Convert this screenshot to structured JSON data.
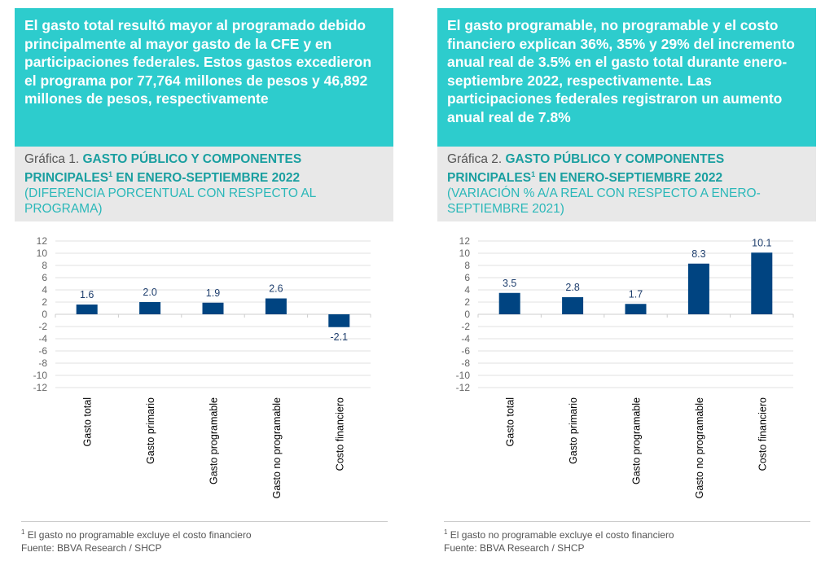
{
  "panels": [
    {
      "headline": "El gasto total resultó mayor al programado debido principalmente al mayor gasto de la CFE y en participaciones federales. Estos gastos excedieron el programa por 77,764 millones de pesos y 46,892 millones de pesos, respectivamente",
      "chart_prefix": "Gráfica 1. ",
      "chart_title_a": "GASTO PÚBLICO Y COMPONENTES PRINCIPALES",
      "sup": "1",
      "chart_title_b": " EN ENERO-SEPTIEMBRE 2022",
      "chart_subtitle": "(DIFERENCIA PORCENTUAL CON RESPECTO AL PROGRAMA)",
      "footnote_sup": "1",
      "footnote": " El gasto no programable excluye el costo financiero",
      "source": "Fuente: BBVA Research / SHCP"
    },
    {
      "headline": "El gasto programable, no programable y el costo financiero explican 36%, 35% y 29% del incremento anual real de 3.5% en el gasto total durante enero-septiembre 2022, respectivamente. Las participaciones federales registraron un aumento anual real de 7.8%",
      "chart_prefix": "Gráfica 2. ",
      "chart_title_a": "GASTO PÚBLICO Y COMPONENTES PRINCIPALES",
      "sup": "1",
      "chart_title_b": " EN ENERO-SEPTIEMBRE 2022",
      "chart_subtitle": "(VARIACIÓN % A/A REAL CON RESPECTO A ENERO-SEPTIEMBRE 2021)",
      "footnote_sup": "1",
      "footnote": " El gasto no programable excluye el costo financiero",
      "source": "Fuente: BBVA Research / SHCP"
    }
  ],
  "chart_data": [
    {
      "type": "bar",
      "categories": [
        "Gasto total",
        "Gasto primario",
        "Gasto programable",
        "Gasto no programable",
        "Costo financiero"
      ],
      "values": [
        1.6,
        2.0,
        1.9,
        2.6,
        -2.1
      ],
      "labels": [
        "1.6",
        "2.0",
        "1.9",
        "2.6",
        "-2.1"
      ],
      "ylim": [
        -12,
        12
      ],
      "yticks": [
        "12",
        "10",
        "8",
        "6",
        "4",
        "2",
        "0",
        "-2",
        "-4",
        "-6",
        "-8",
        "-10",
        "-12"
      ],
      "grid": true,
      "bar_color": "#004481"
    },
    {
      "type": "bar",
      "categories": [
        "Gasto total",
        "Gasto primario",
        "Gasto programable",
        "Gasto no programable",
        "Costo financiero"
      ],
      "values": [
        3.5,
        2.8,
        1.7,
        8.3,
        10.1
      ],
      "labels": [
        "3.5",
        "2.8",
        "1.7",
        "8.3",
        "10.1"
      ],
      "ylim": [
        -12,
        12
      ],
      "yticks": [
        "12",
        "10",
        "8",
        "6",
        "4",
        "2",
        "0",
        "-2",
        "-4",
        "-6",
        "-8",
        "-10",
        "-12"
      ],
      "grid": true,
      "bar_color": "#004481"
    }
  ]
}
